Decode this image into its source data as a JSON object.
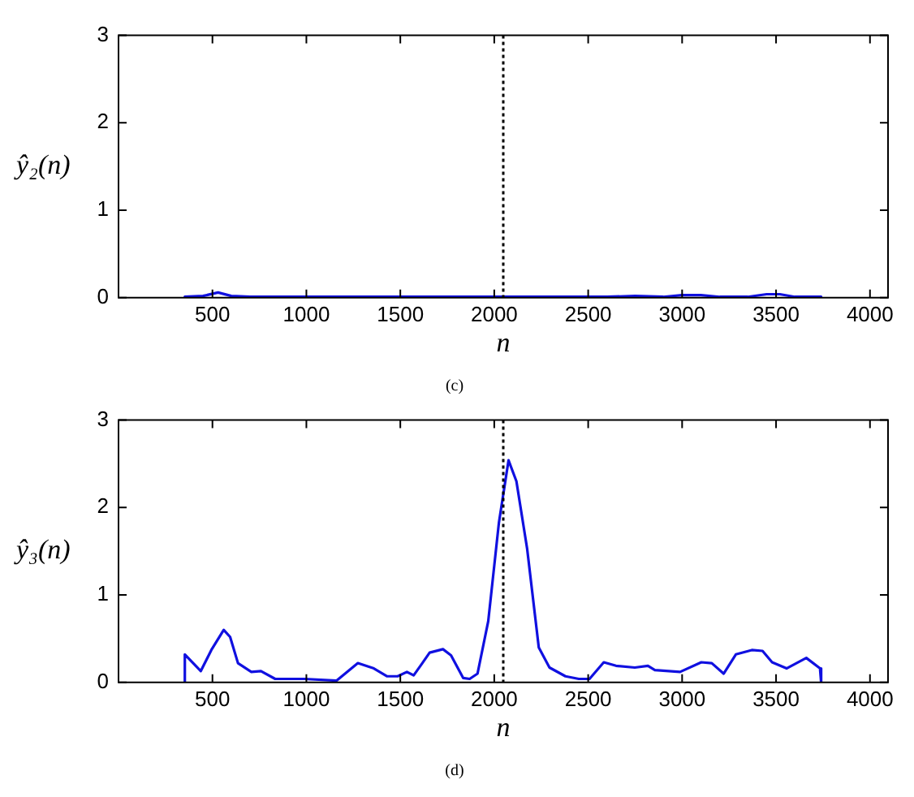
{
  "chart_data": [
    {
      "type": "line",
      "xlabel": "n",
      "ylabel": "ŷ₂(n)",
      "annotations": [
        "(c)"
      ],
      "xlim": [
        0,
        4096
      ],
      "ylim": [
        0,
        3
      ],
      "xticks": [
        500,
        1000,
        1500,
        2000,
        2500,
        3000,
        3500,
        4000
      ],
      "yticks": [
        0,
        1,
        2,
        3
      ],
      "grid": false,
      "legend": false,
      "line_style": "solid",
      "marker": "none",
      "ref_lines": [
        {
          "axis": "x",
          "value": 2048,
          "color": "#000000",
          "line_style": "dotted"
        }
      ],
      "series": [
        {
          "color": "#1010e0",
          "x": [
            353,
            353,
            450,
            530,
            600,
            700,
            900,
            1200,
            1500,
            1800,
            2100,
            2400,
            2600,
            2750,
            2900,
            3000,
            3100,
            3200,
            3350,
            3450,
            3520,
            3600,
            3740,
            3740
          ],
          "values": [
            0,
            0.01,
            0.02,
            0.06,
            0.02,
            0.01,
            0.01,
            0.01,
            0.01,
            0.01,
            0.01,
            0.01,
            0.01,
            0.02,
            0.01,
            0.03,
            0.03,
            0.01,
            0.01,
            0.04,
            0.04,
            0.01,
            0.01,
            0
          ]
        }
      ]
    },
    {
      "type": "line",
      "xlabel": "n",
      "ylabel": "ŷ₃(n)",
      "annotations": [
        "(d)"
      ],
      "xlim": [
        0,
        4096
      ],
      "ylim": [
        0,
        3
      ],
      "xticks": [
        500,
        1000,
        1500,
        2000,
        2500,
        3000,
        3500,
        4000
      ],
      "yticks": [
        0,
        1,
        2,
        3
      ],
      "grid": false,
      "legend": false,
      "line_style": "solid",
      "marker": "none",
      "ref_lines": [
        {
          "axis": "x",
          "value": 2048,
          "color": "#000000",
          "line_style": "dotted"
        }
      ],
      "series": [
        {
          "color": "#1010e0",
          "x": [
            353,
            353,
            438,
            494,
            560,
            594,
            636,
            707,
            758,
            834,
            990,
            1160,
            1274,
            1359,
            1430,
            1486,
            1535,
            1571,
            1614,
            1656,
            1727,
            1770,
            1835,
            1869,
            1911,
            1968,
            2025,
            2076,
            2118,
            2175,
            2237,
            2294,
            2379,
            2450,
            2507,
            2583,
            2648,
            2748,
            2818,
            2855,
            2989,
            3102,
            3158,
            3221,
            3286,
            3371,
            3428,
            3479,
            3556,
            3661,
            3734,
            3740
          ],
          "values": [
            0,
            0.32,
            0.13,
            0.37,
            0.6,
            0.52,
            0.22,
            0.12,
            0.13,
            0.04,
            0.04,
            0.02,
            0.22,
            0.16,
            0.07,
            0.07,
            0.12,
            0.08,
            0.21,
            0.34,
            0.38,
            0.31,
            0.05,
            0.04,
            0.1,
            0.7,
            1.83,
            2.54,
            2.3,
            1.53,
            0.4,
            0.17,
            0.07,
            0.04,
            0.04,
            0.23,
            0.19,
            0.17,
            0.19,
            0.14,
            0.12,
            0.23,
            0.22,
            0.1,
            0.32,
            0.37,
            0.36,
            0.23,
            0.16,
            0.28,
            0.16,
            0
          ]
        }
      ]
    }
  ]
}
